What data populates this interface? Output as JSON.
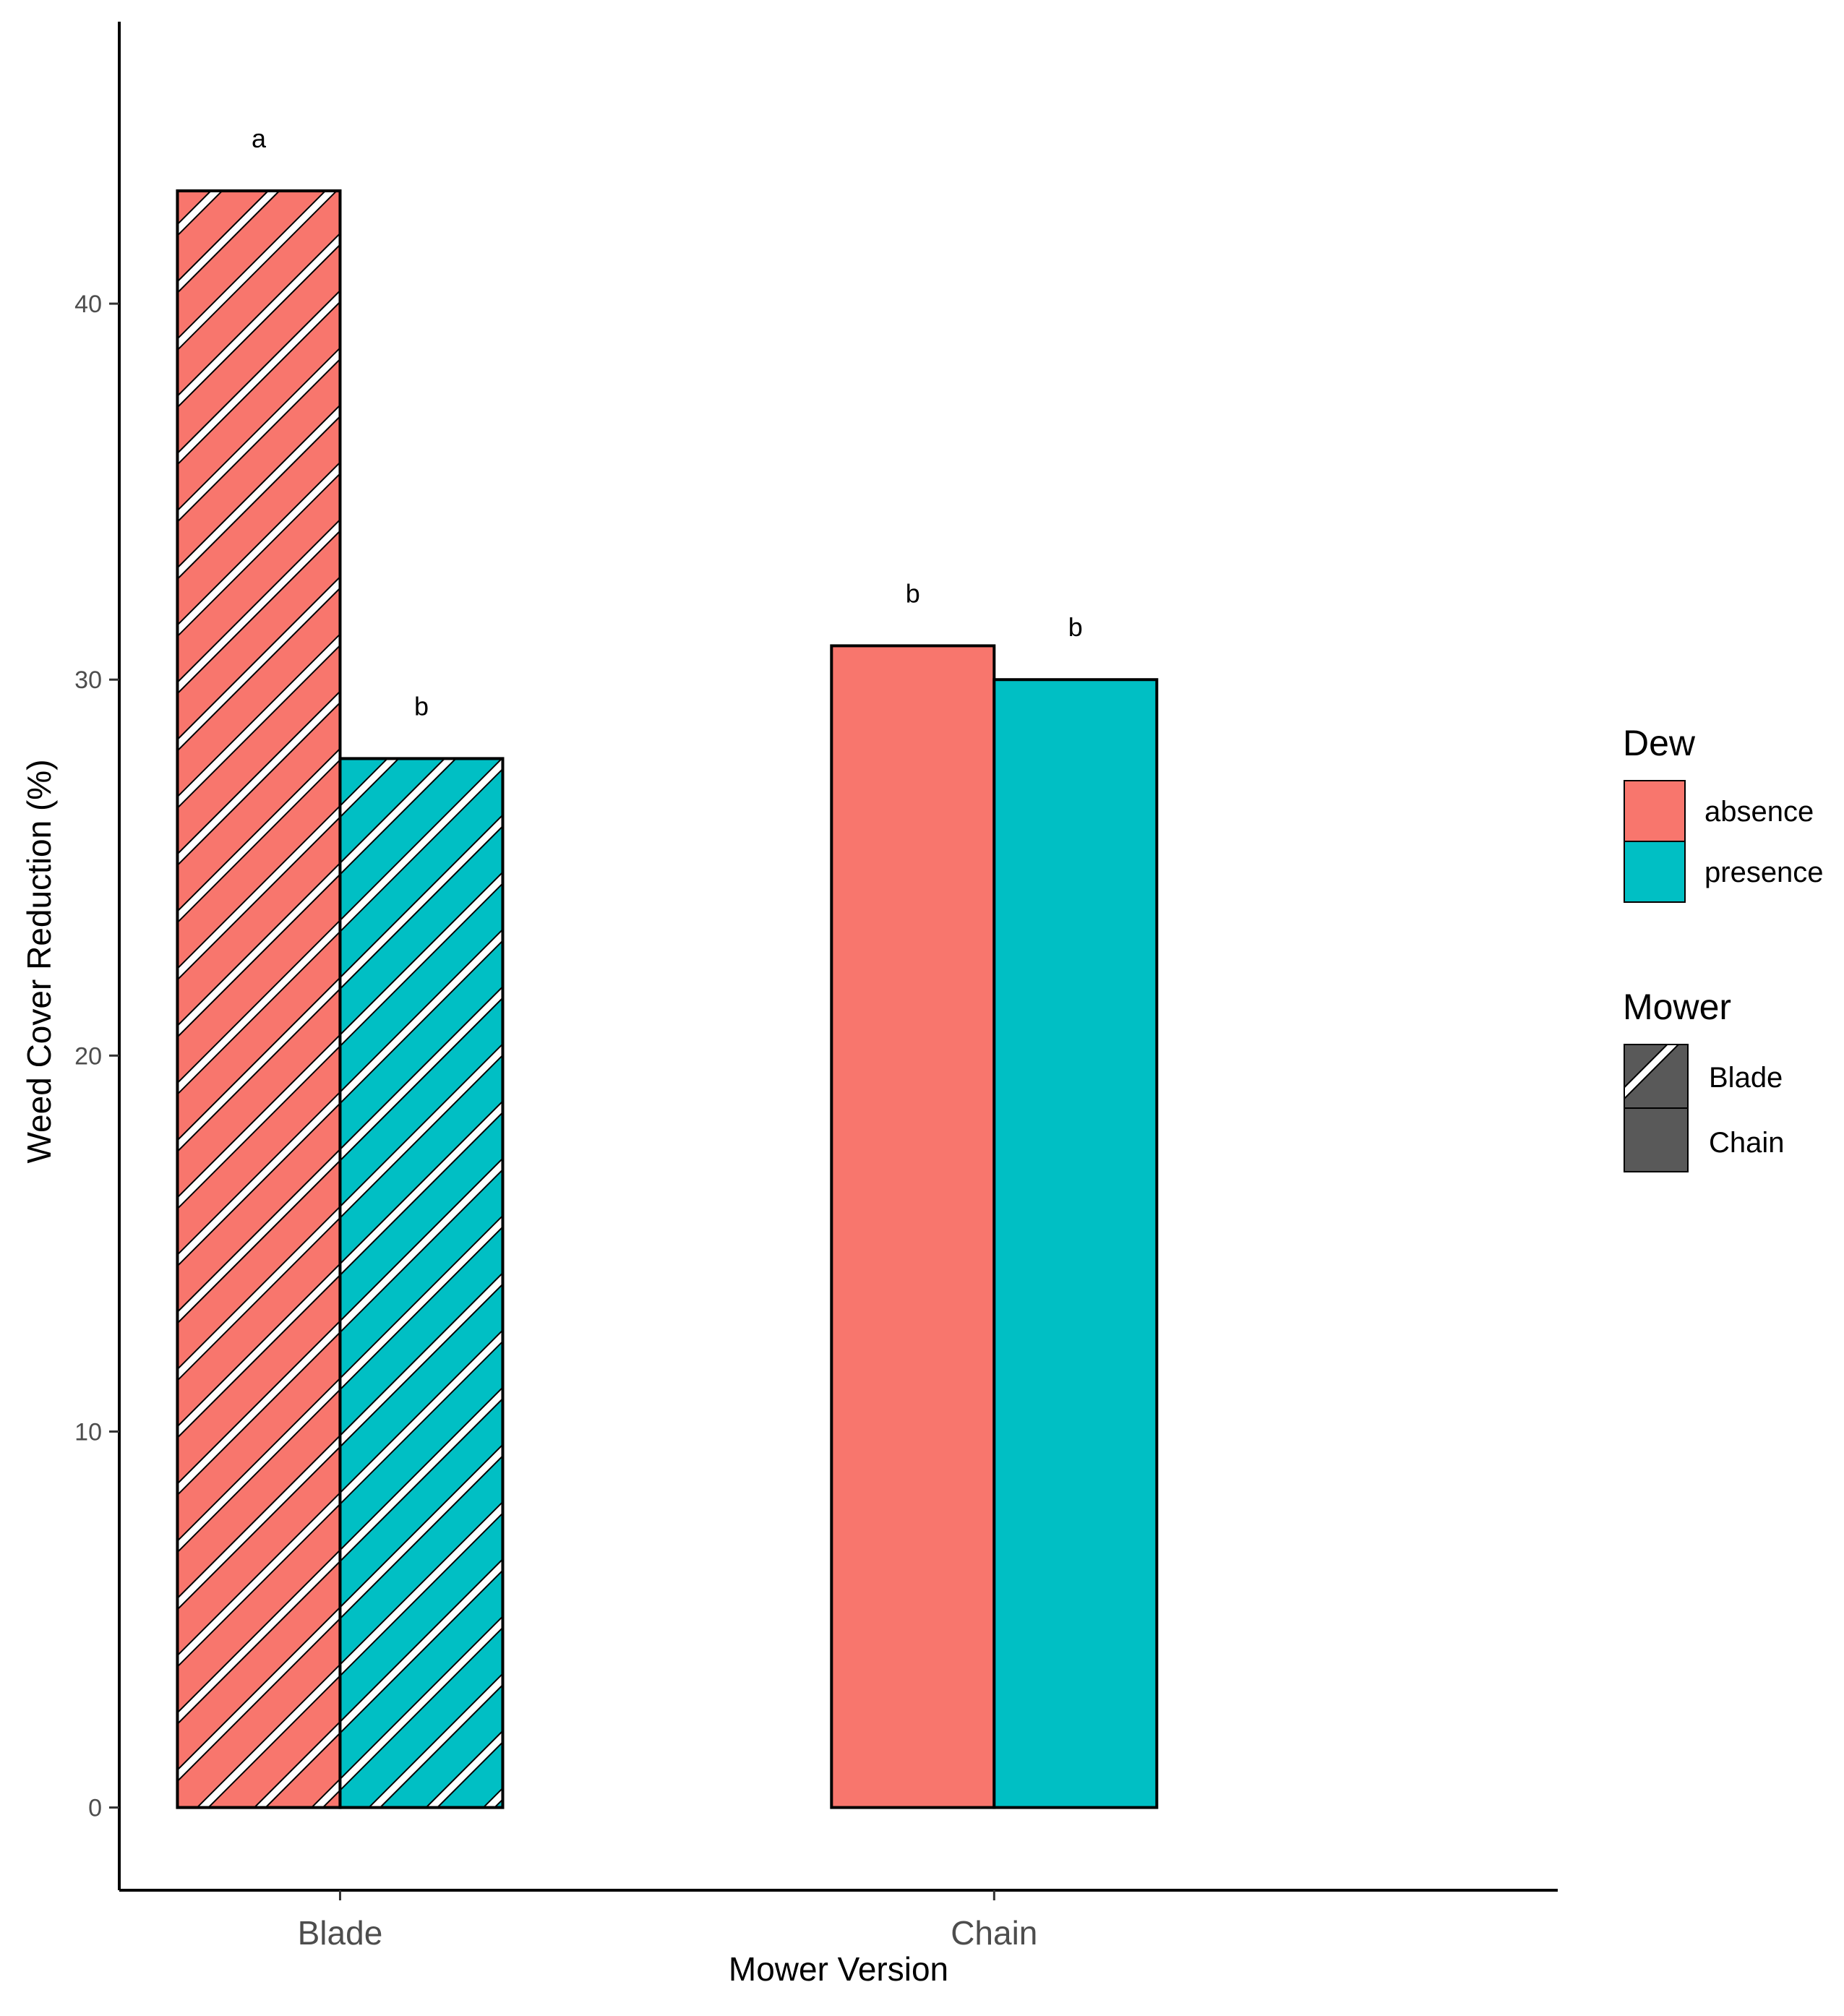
{
  "chart_data": {
    "type": "bar",
    "title": "",
    "xlabel": "Mower Version",
    "ylabel": "Weed Cover Reduction (%)",
    "categories": [
      "Blade",
      "Chain"
    ],
    "ylim": [
      -2.2,
      47.5
    ],
    "yticks": [
      0,
      10,
      20,
      30,
      40
    ],
    "grid": false,
    "series": [
      {
        "name": "absence",
        "color": "#F8766D",
        "values": [
          43.0,
          30.9
        ],
        "labels": [
          "a",
          "b"
        ]
      },
      {
        "name": "presence",
        "color": "#00BFC4",
        "values": [
          27.9,
          30.0
        ],
        "labels": [
          "b",
          "b"
        ]
      }
    ],
    "pattern_by_category": {
      "Blade": "stripe",
      "Chain": "none"
    },
    "legends": [
      {
        "title": "Dew",
        "position": "right",
        "entries": [
          {
            "label": "absence",
            "color": "#F8766D"
          },
          {
            "label": "presence",
            "color": "#00BFC4"
          }
        ]
      },
      {
        "title": "Mower",
        "position": "right",
        "entries": [
          {
            "label": "Blade",
            "pattern": "stripe",
            "color": "#595959"
          },
          {
            "label": "Chain",
            "pattern": "none",
            "color": "#595959"
          }
        ]
      }
    ]
  }
}
